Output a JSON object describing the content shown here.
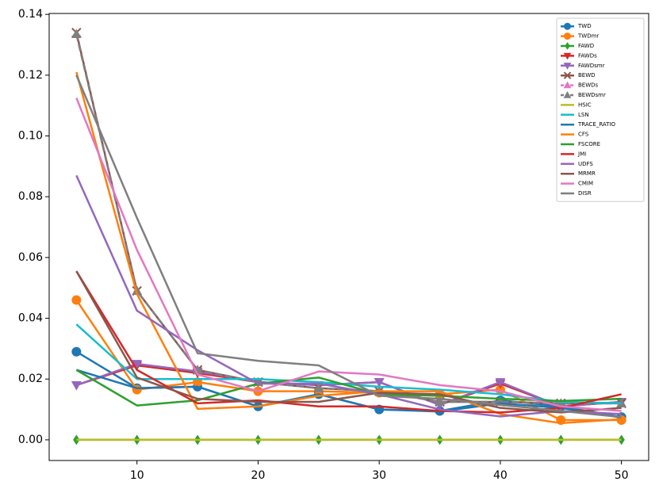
{
  "chart_data": {
    "type": "line",
    "x": [
      5,
      10,
      15,
      20,
      25,
      30,
      35,
      40,
      45,
      50
    ],
    "xlim": [
      2.75,
      52.25
    ],
    "ylim": [
      -0.0068,
      0.1403
    ],
    "xticks": [
      10,
      20,
      30,
      40,
      50
    ],
    "yticks": [
      {
        "value": 0,
        "label": "0.00"
      },
      {
        "value": 0.02,
        "label": "0.02"
      },
      {
        "value": 0.04,
        "label": "0.04"
      },
      {
        "value": 0.06,
        "label": "0.06"
      },
      {
        "value": 0.08,
        "label": "0.08"
      },
      {
        "value": 0.1,
        "label": "0.10"
      },
      {
        "value": 0.12,
        "label": "0.12"
      },
      {
        "value": 0.14,
        "label": "0.14"
      }
    ],
    "legend": "upper right",
    "grid": false,
    "series": [
      {
        "name": "TWD",
        "color": "#1f77b4",
        "marker": "circle",
        "values": [
          0.029,
          0.017,
          0.0175,
          0.011,
          0.015,
          0.01,
          0.0095,
          0.013,
          0.011,
          0.0075
        ]
      },
      {
        "name": "TWDmr",
        "color": "#ff7f0e",
        "marker": "circle",
        "values": [
          0.046,
          0.0165,
          0.019,
          0.016,
          0.016,
          0.0155,
          0.015,
          0.0165,
          0.0065,
          0.0065
        ]
      },
      {
        "name": "FAWD",
        "color": "#2ca02c",
        "marker": "diamond",
        "values": [
          0,
          0,
          0,
          0,
          0,
          0,
          0,
          0,
          0,
          0
        ]
      },
      {
        "name": "FAWDs",
        "color": "#d62728",
        "marker": "triangle-down",
        "values": [
          0.018,
          0.0245,
          0.022,
          0.019,
          0.018,
          0.019,
          0.0115,
          0.0185,
          0.011,
          0.0125
        ]
      },
      {
        "name": "FAWDsmr",
        "color": "#9467bd",
        "marker": "triangle-down",
        "values": [
          0.018,
          0.025,
          0.0225,
          0.019,
          0.018,
          0.019,
          0.0115,
          0.019,
          0.011,
          0.0125
        ]
      },
      {
        "name": "BEWD",
        "color": "#8c564b",
        "marker": "x",
        "values": [
          0.134,
          0.049,
          0.023,
          0.019,
          0.017,
          0.016,
          0.0125,
          0.0125,
          0.012,
          0.012
        ]
      },
      {
        "name": "BEWDs",
        "color": "#e377c2",
        "marker": "triangle-up",
        "linestyle": "dashed",
        "values": [
          0.1335,
          0.049,
          0.023,
          0.019,
          0.017,
          0.016,
          0.0125,
          0.0125,
          0.012,
          0.012
        ]
      },
      {
        "name": "BEWDsmr",
        "color": "#7f7f7f",
        "marker": "triangle-up",
        "linestyle": "dashed",
        "values": [
          0.1335,
          0.049,
          0.023,
          0.019,
          0.017,
          0.016,
          0.0125,
          0.0125,
          0.012,
          0.012
        ]
      },
      {
        "name": "HSIC",
        "color": "#bcbd22",
        "values": [
          0,
          0,
          0,
          0,
          0,
          0,
          0,
          0,
          0,
          0
        ]
      },
      {
        "name": "LSN",
        "color": "#17becf",
        "values": [
          0.038,
          0.02,
          0.02,
          0.02,
          0.019,
          0.0175,
          0.0165,
          0.015,
          0.0125,
          0.012
        ]
      },
      {
        "name": "TRACE_RATIO",
        "color": "#1f77b4",
        "values": [
          0.023,
          0.017,
          0.0175,
          0.011,
          0.015,
          0.01,
          0.0093,
          0.012,
          0.0105,
          0.0073
        ]
      },
      {
        "name": "CFS",
        "color": "#ff7f0e",
        "values": [
          0.121,
          0.048,
          0.0102,
          0.011,
          0.0145,
          0.016,
          0.016,
          0.0085,
          0.0055,
          0.0068
        ]
      },
      {
        "name": "FSCORE",
        "color": "#2ca02c",
        "values": [
          0.023,
          0.0113,
          0.013,
          0.0185,
          0.0205,
          0.015,
          0.0145,
          0.0135,
          0.0128,
          0.0135
        ]
      },
      {
        "name": "JMI",
        "color": "#d62728",
        "values": [
          0.0555,
          0.023,
          0.012,
          0.013,
          0.011,
          0.011,
          0.0095,
          0.009,
          0.0105,
          0.015
        ]
      },
      {
        "name": "UDFS",
        "color": "#9467bd",
        "values": [
          0.087,
          0.0425,
          0.0295,
          0.0185,
          0.0185,
          0.015,
          0.01,
          0.0077,
          0.0095,
          0.0085
        ]
      },
      {
        "name": "MRMR",
        "color": "#8c564b",
        "values": [
          0.0555,
          0.0205,
          0.0135,
          0.0125,
          0.0125,
          0.0155,
          0.015,
          0.0105,
          0.009,
          0.0105
        ]
      },
      {
        "name": "CMIM",
        "color": "#e377c2",
        "values": [
          0.1125,
          0.0625,
          0.0215,
          0.016,
          0.0225,
          0.0215,
          0.018,
          0.016,
          0.011,
          0.0095
        ]
      },
      {
        "name": "DISR",
        "color": "#7f7f7f",
        "values": [
          0.12,
          0.073,
          0.0285,
          0.026,
          0.0245,
          0.0145,
          0.0135,
          0.0115,
          0.0095,
          0.0075
        ]
      }
    ]
  }
}
